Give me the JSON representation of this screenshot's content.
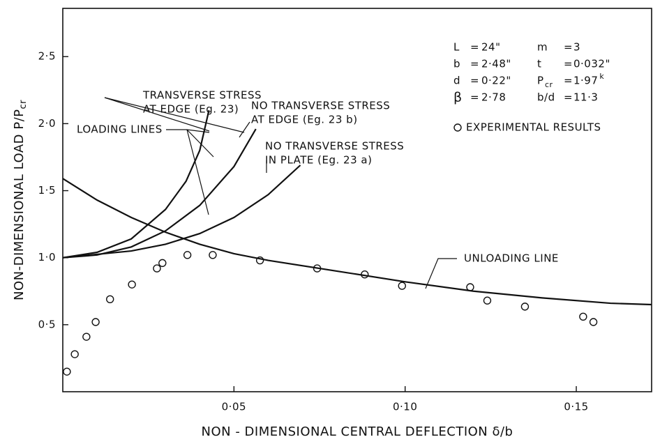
{
  "chart_data": {
    "type": "line",
    "xlabel": "NON - DIMENSIONAL CENTRAL DEFLECTION  δ/b",
    "ylabel": "NON-DIMENSIONAL LOAD  P/P",
    "ylabel_sub": "cr",
    "xlim": [
      0,
      0.172
    ],
    "ylim": [
      0,
      2.86
    ],
    "xticks": [
      {
        "value": 0.05,
        "label": "0·05"
      },
      {
        "value": 0.1,
        "label": "0·10"
      },
      {
        "value": 0.15,
        "label": "0·15"
      }
    ],
    "yticks": [
      {
        "value": 0.5,
        "label": "0·5"
      },
      {
        "value": 1.0,
        "label": "1·0"
      },
      {
        "value": 1.5,
        "label": "1·5"
      },
      {
        "value": 2.0,
        "label": "2·0"
      },
      {
        "value": 2.5,
        "label": "2·5"
      }
    ],
    "grid": false,
    "series": [
      {
        "style": "line",
        "color": "#111",
        "label_lines": [
          "TRANSVERSE STRESS",
          "AT EDGE (Eg. 23)"
        ],
        "x": [
          0,
          0.01,
          0.02,
          0.03,
          0.036,
          0.04,
          0.0427
        ],
        "values": [
          1.0,
          1.04,
          1.14,
          1.36,
          1.57,
          1.8,
          2.1
        ]
      },
      {
        "style": "line",
        "color": "#111",
        "label_lines": [
          "NO  TRANSVERSE  STRESS",
          "AT EDGE  (Eg. 23 b)"
        ],
        "x": [
          0,
          0.01,
          0.02,
          0.03,
          0.04,
          0.05,
          0.0564
        ],
        "values": [
          1.0,
          1.02,
          1.08,
          1.2,
          1.39,
          1.68,
          1.96
        ]
      },
      {
        "style": "line",
        "color": "#111",
        "label_lines": [
          "NO  TRANSVERSE  STRESS",
          "IN  PLATE  (Eg. 23 a)"
        ],
        "x": [
          0,
          0.02,
          0.03,
          0.04,
          0.05,
          0.06,
          0.0694
        ],
        "values": [
          1.0,
          1.05,
          1.1,
          1.18,
          1.3,
          1.47,
          1.69
        ]
      },
      {
        "style": "line",
        "color": "#111",
        "label_lines": [
          "UNLOADING  LINE"
        ],
        "x": [
          0,
          0.01,
          0.02,
          0.03,
          0.04,
          0.05,
          0.06,
          0.08,
          0.1,
          0.12,
          0.14,
          0.16,
          0.172
        ],
        "values": [
          1.59,
          1.43,
          1.3,
          1.19,
          1.1,
          1.03,
          0.98,
          0.9,
          0.82,
          0.75,
          0.7,
          0.66,
          0.65
        ]
      },
      {
        "style": "markers",
        "color": "#111",
        "name": "EXPERIMENTAL  RESULTS",
        "x": [
          0.0012,
          0.0035,
          0.0069,
          0.0096,
          0.0138,
          0.0202,
          0.0275,
          0.0291,
          0.0364,
          0.0438,
          0.0576,
          0.0743,
          0.0882,
          0.0991,
          0.119,
          0.124,
          0.135,
          0.152,
          0.155
        ],
        "values": [
          0.15,
          0.28,
          0.41,
          0.52,
          0.69,
          0.8,
          0.92,
          0.96,
          1.02,
          1.02,
          0.98,
          0.92,
          0.875,
          0.79,
          0.78,
          0.68,
          0.635,
          0.56,
          0.52
        ]
      }
    ],
    "loading_label": "LOADING  LINES",
    "parameters": [
      [
        "L",
        "=",
        "24\""
      ],
      [
        "m",
        "=",
        "3"
      ],
      [
        "b",
        "=",
        "2·48\""
      ],
      [
        "t",
        "=",
        "0·032\""
      ],
      [
        "d",
        "=",
        "0·22\""
      ],
      [
        "P",
        "=",
        "1·97"
      ],
      [
        "β",
        "=",
        "2·78"
      ],
      [
        "b/d",
        "=",
        "11·3"
      ]
    ],
    "param_sub": "cr",
    "param_sup": "k"
  }
}
